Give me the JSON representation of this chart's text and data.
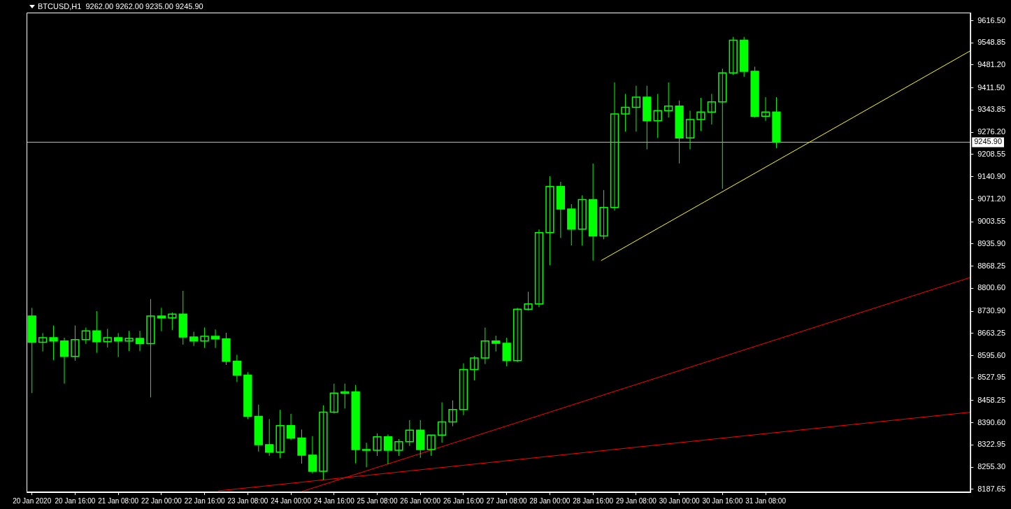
{
  "chart_data": {
    "type": "candlestick",
    "title": "BTCUSD,H1  9262.00 9262.00 9235.00 9245.90",
    "color": "#00ff00",
    "x": [
      "2020-01-20T00:00",
      "2020-01-20T04:00",
      "2020-01-20T08:00",
      "2020-01-20T12:00",
      "2020-01-20T16:00",
      "2020-01-20T20:00",
      "2020-01-21T00:00",
      "2020-01-21T04:00",
      "2020-01-21T08:00",
      "2020-01-21T12:00",
      "2020-01-21T16:00",
      "2020-01-21T20:00",
      "2020-01-22T00:00",
      "2020-01-22T04:00",
      "2020-01-22T08:00",
      "2020-01-22T12:00",
      "2020-01-22T16:00",
      "2020-01-22T20:00",
      "2020-01-23T00:00",
      "2020-01-23T04:00",
      "2020-01-23T08:00",
      "2020-01-23T12:00",
      "2020-01-23T16:00",
      "2020-01-23T20:00",
      "2020-01-24T00:00",
      "2020-01-24T04:00",
      "2020-01-24T08:00",
      "2020-01-24T12:00",
      "2020-01-24T16:00",
      "2020-01-24T20:00",
      "2020-01-25T00:00",
      "2020-01-25T04:00",
      "2020-01-25T08:00",
      "2020-01-25T12:00",
      "2020-01-25T16:00",
      "2020-01-25T20:00",
      "2020-01-26T00:00",
      "2020-01-26T04:00",
      "2020-01-26T08:00",
      "2020-01-26T12:00",
      "2020-01-26T16:00",
      "2020-01-26T20:00",
      "2020-01-27T00:00",
      "2020-01-27T04:00",
      "2020-01-27T08:00",
      "2020-01-27T12:00",
      "2020-01-27T16:00",
      "2020-01-27T20:00",
      "2020-01-28T00:00",
      "2020-01-28T04:00",
      "2020-01-28T08:00",
      "2020-01-28T12:00",
      "2020-01-28T16:00",
      "2020-01-28T20:00",
      "2020-01-29T00:00",
      "2020-01-29T04:00",
      "2020-01-29T08:00",
      "2020-01-29T12:00",
      "2020-01-29T16:00",
      "2020-01-29T20:00",
      "2020-01-30T00:00",
      "2020-01-30T04:00",
      "2020-01-30T08:00",
      "2020-01-30T12:00",
      "2020-01-30T16:00",
      "2020-01-30T20:00",
      "2020-01-31T00:00",
      "2020-01-31T04:00",
      "2020-01-31T08:00",
      "2020-01-31T12:00"
    ],
    "ohlc": [
      [
        8716,
        8741,
        8481,
        8636
      ],
      [
        8636,
        8664,
        8608,
        8650
      ],
      [
        8650,
        8687,
        8582,
        8640
      ],
      [
        8640,
        8650,
        8510,
        8593
      ],
      [
        8593,
        8687,
        8580,
        8644
      ],
      [
        8644,
        8681,
        8631,
        8671
      ],
      [
        8671,
        8731,
        8604,
        8638
      ],
      [
        8638,
        8677,
        8620,
        8650
      ],
      [
        8650,
        8664,
        8591,
        8640
      ],
      [
        8640,
        8671,
        8609,
        8648
      ],
      [
        8648,
        8671,
        8609,
        8632
      ],
      [
        8632,
        8768,
        8468,
        8716
      ],
      [
        8716,
        8741,
        8670,
        8710
      ],
      [
        8710,
        8727,
        8673,
        8722
      ],
      [
        8722,
        8793,
        8629,
        8652
      ],
      [
        8652,
        8668,
        8625,
        8640
      ],
      [
        8640,
        8681,
        8619,
        8654
      ],
      [
        8654,
        8675,
        8619,
        8646
      ],
      [
        8646,
        8665,
        8567,
        8578
      ],
      [
        8578,
        8598,
        8515,
        8536
      ],
      [
        8536,
        8545,
        8402,
        8410
      ],
      [
        8410,
        8446,
        8303,
        8324
      ],
      [
        8324,
        8402,
        8290,
        8301
      ],
      [
        8301,
        8430,
        8283,
        8382
      ],
      [
        8382,
        8418,
        8338,
        8344
      ],
      [
        8344,
        8370,
        8266,
        8292
      ],
      [
        8292,
        8350,
        8237,
        8243
      ],
      [
        8243,
        8444,
        8216,
        8423
      ],
      [
        8423,
        8510,
        8419,
        8481
      ],
      [
        8481,
        8510,
        8434,
        8485
      ],
      [
        8485,
        8506,
        8267,
        8309
      ],
      [
        8309,
        8330,
        8255,
        8307
      ],
      [
        8307,
        8358,
        8290,
        8348
      ],
      [
        8348,
        8355,
        8264,
        8307
      ],
      [
        8307,
        8341,
        8290,
        8333
      ],
      [
        8333,
        8399,
        8320,
        8368
      ],
      [
        8368,
        8399,
        8284,
        8309
      ],
      [
        8309,
        8353,
        8290,
        8353
      ],
      [
        8353,
        8453,
        8330,
        8393
      ],
      [
        8393,
        8459,
        8380,
        8431
      ],
      [
        8431,
        8572,
        8414,
        8553
      ],
      [
        8553,
        8594,
        8520,
        8588
      ],
      [
        8588,
        8681,
        8570,
        8640
      ],
      [
        8640,
        8656,
        8608,
        8633
      ],
      [
        8633,
        8650,
        8563,
        8580
      ],
      [
        8580,
        8741,
        8575,
        8737
      ],
      [
        8737,
        8790,
        8733,
        8753
      ],
      [
        8753,
        8980,
        8743,
        8970
      ],
      [
        8970,
        9142,
        8871,
        9111
      ],
      [
        9111,
        9125,
        8954,
        9042
      ],
      [
        9042,
        9057,
        8931,
        8981
      ],
      [
        8981,
        9084,
        8931,
        9071
      ],
      [
        9071,
        9181,
        8885,
        8960
      ],
      [
        8960,
        9100,
        8950,
        9047
      ],
      [
        9047,
        9428,
        9038,
        9332
      ],
      [
        9332,
        9393,
        9278,
        9352
      ],
      [
        9352,
        9418,
        9278,
        9383
      ],
      [
        9383,
        9418,
        9224,
        9311
      ],
      [
        9311,
        9393,
        9259,
        9342
      ],
      [
        9342,
        9428,
        9321,
        9356
      ],
      [
        9356,
        9373,
        9181,
        9259
      ],
      [
        9259,
        9342,
        9224,
        9315
      ],
      [
        9315,
        9381,
        9280,
        9338
      ],
      [
        9338,
        9393,
        9300,
        9369
      ],
      [
        9369,
        9470,
        9104,
        9457
      ],
      [
        9457,
        9567,
        9451,
        9557
      ],
      [
        9557,
        9567,
        9445,
        9462
      ],
      [
        9462,
        9476,
        9321,
        9325
      ],
      [
        9325,
        9383,
        9311,
        9338
      ],
      [
        9338,
        9383,
        9228,
        9245.9
      ]
    ],
    "series": [
      {
        "type": "line",
        "color": "#ffff00",
        "x": [
          "2020-01-28T19:00",
          "2020-02-03T12:00"
        ],
        "values": [
          8885,
          9525
        ]
      },
      {
        "type": "line",
        "color": "#ff0000",
        "x": [
          "2020-01-22T21:00",
          "2020-02-03T12:00"
        ],
        "values": [
          8183,
          8423
        ]
      },
      {
        "type": "line",
        "color": "#ff0000",
        "x": [
          "2020-01-24T04:00",
          "2020-02-03T12:00"
        ],
        "values": [
          8181,
          8834
        ]
      }
    ],
    "ref_lines": [
      {
        "axis": "y",
        "value": 9245.9,
        "label": "9245.90",
        "color": "#c0c0c0"
      }
    ],
    "xlim": [
      "2020-01-19T22:00",
      "2020-02-03T12:00"
    ],
    "xticks": [
      {
        "value": "2020-01-20T00:00",
        "label": "20 Jan 2020"
      },
      {
        "value": "2020-01-20T16:00",
        "label": "20 Jan 16:00"
      },
      {
        "value": "2020-01-21T08:00",
        "label": "21 Jan 08:00"
      },
      {
        "value": "2020-01-22T00:00",
        "label": "22 Jan 00:00"
      },
      {
        "value": "2020-01-22T16:00",
        "label": "22 Jan 16:00"
      },
      {
        "value": "2020-01-23T08:00",
        "label": "23 Jan 08:00"
      },
      {
        "value": "2020-01-24T00:00",
        "label": "24 Jan 00:00"
      },
      {
        "value": "2020-01-24T16:00",
        "label": "24 Jan 16:00"
      },
      {
        "value": "2020-01-25T08:00",
        "label": "25 Jan 08:00"
      },
      {
        "value": "2020-01-26T00:00",
        "label": "26 Jan 00:00"
      },
      {
        "value": "2020-01-26T16:00",
        "label": "26 Jan 16:00"
      },
      {
        "value": "2020-01-27T08:00",
        "label": "27 Jan 08:00"
      },
      {
        "value": "2020-01-28T00:00",
        "label": "28 Jan 00:00"
      },
      {
        "value": "2020-01-28T16:00",
        "label": "28 Jan 16:00"
      },
      {
        "value": "2020-01-29T08:00",
        "label": "29 Jan 08:00"
      },
      {
        "value": "2020-01-30T00:00",
        "label": "30 Jan 00:00"
      },
      {
        "value": "2020-01-30T16:00",
        "label": "30 Jan 16:00"
      },
      {
        "value": "2020-01-31T08:00",
        "label": "31 Jan 08:00"
      }
    ],
    "ylim": [
      8179,
      9641
    ],
    "yticks": [
      {
        "value": 9616.5,
        "label": "9616.50"
      },
      {
        "value": 9548.85,
        "label": "9548.85"
      },
      {
        "value": 9481.2,
        "label": "9481.20"
      },
      {
        "value": 9411.5,
        "label": "9411.50"
      },
      {
        "value": 9343.85,
        "label": "9343.85"
      },
      {
        "value": 9276.2,
        "label": "9276.20"
      },
      {
        "value": 9208.55,
        "label": "9208.55"
      },
      {
        "value": 9140.9,
        "label": "9140.90"
      },
      {
        "value": 9071.2,
        "label": "9071.20"
      },
      {
        "value": 9003.55,
        "label": "9003.55"
      },
      {
        "value": 8935.9,
        "label": "8935.90"
      },
      {
        "value": 8868.25,
        "label": "8868.25"
      },
      {
        "value": 8800.6,
        "label": "8800.60"
      },
      {
        "value": 8730.9,
        "label": "8730.90"
      },
      {
        "value": 8663.25,
        "label": "8663.25"
      },
      {
        "value": 8595.6,
        "label": "8595.60"
      },
      {
        "value": 8527.95,
        "label": "8527.95"
      },
      {
        "value": 8458.25,
        "label": "8458.25"
      },
      {
        "value": 8390.6,
        "label": "8390.60"
      },
      {
        "value": 8322.95,
        "label": "8322.95"
      },
      {
        "value": 8255.3,
        "label": "8255.30"
      },
      {
        "value": 8187.65,
        "label": "8187.65"
      }
    ],
    "grid": false,
    "legend": false
  }
}
